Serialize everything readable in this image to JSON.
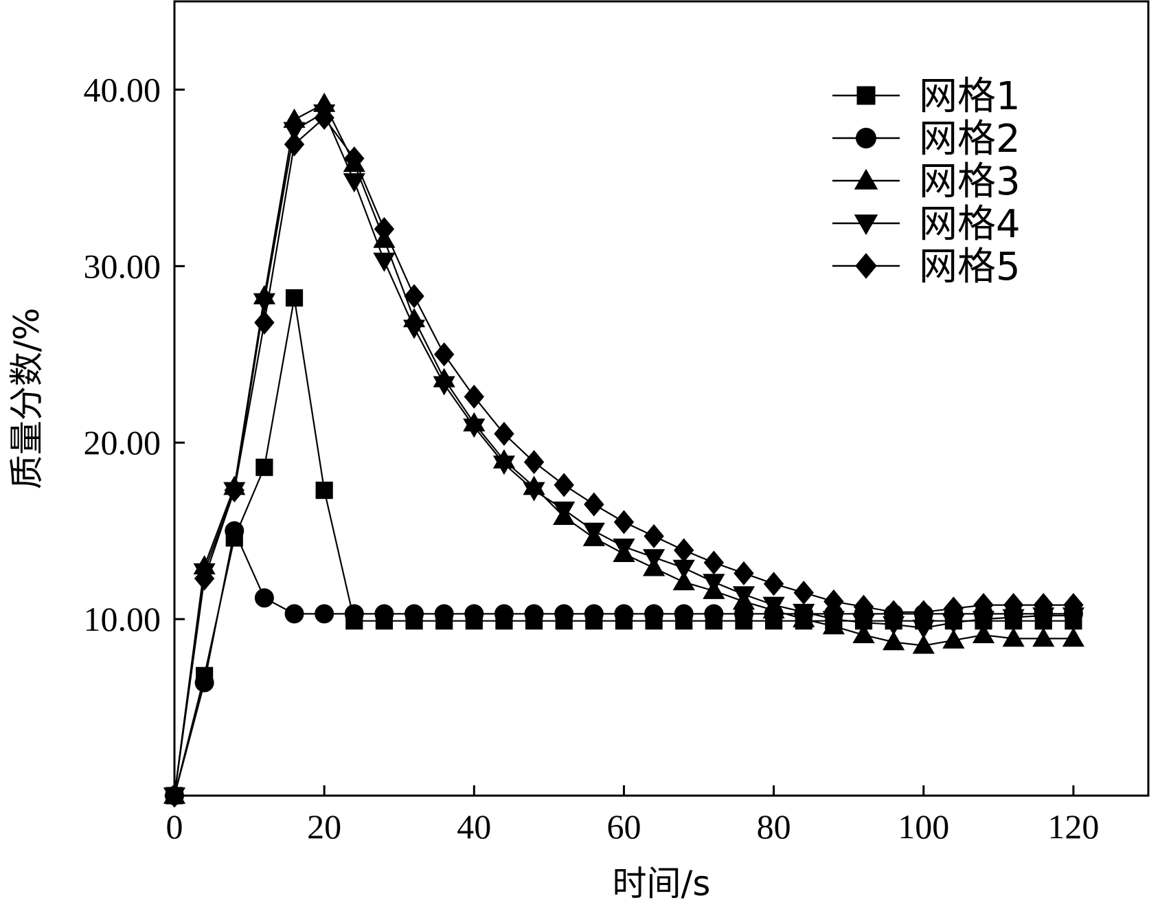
{
  "chart_data": {
    "type": "line",
    "xlabel": "时间/s",
    "ylabel": "质量分数/%",
    "xlim": [
      0,
      130
    ],
    "ylim": [
      0,
      45
    ],
    "x_ticks": [
      0,
      20,
      40,
      60,
      80,
      100,
      120
    ],
    "x_tick_labels": [
      "0",
      "20",
      "40",
      "60",
      "80",
      "100",
      "120"
    ],
    "y_ticks": [
      10,
      20,
      30,
      40
    ],
    "y_tick_labels": [
      "10.00",
      "20.00",
      "30.00",
      "40.00"
    ],
    "grid": false,
    "legend_position": "top-right",
    "series": [
      {
        "name": "网格1",
        "marker": "square",
        "x": [
          0,
          4,
          8,
          12,
          16,
          20,
          24,
          28,
          32,
          36,
          40,
          44,
          48,
          52,
          56,
          60,
          64,
          68,
          72,
          76,
          80,
          84,
          88,
          92,
          96,
          100,
          104,
          108,
          112,
          116,
          120
        ],
        "y": [
          0,
          6.8,
          14.6,
          18.6,
          28.2,
          17.3,
          9.9,
          9.9,
          9.9,
          9.9,
          9.9,
          9.9,
          9.9,
          9.9,
          9.9,
          9.9,
          9.9,
          9.9,
          9.9,
          9.9,
          9.9,
          9.9,
          9.9,
          9.9,
          9.9,
          9.9,
          9.9,
          9.9,
          9.9,
          9.9,
          9.9
        ]
      },
      {
        "name": "网格2",
        "marker": "circle",
        "x": [
          0,
          4,
          8,
          12,
          16,
          20,
          24,
          28,
          32,
          36,
          40,
          44,
          48,
          52,
          56,
          60,
          64,
          68,
          72,
          76,
          80,
          84,
          88,
          92,
          96,
          100,
          104,
          108,
          112,
          116,
          120
        ],
        "y": [
          0,
          6.4,
          15.0,
          11.2,
          10.3,
          10.3,
          10.3,
          10.3,
          10.3,
          10.3,
          10.3,
          10.3,
          10.3,
          10.3,
          10.3,
          10.3,
          10.3,
          10.3,
          10.3,
          10.3,
          10.3,
          10.3,
          10.3,
          10.3,
          10.3,
          10.3,
          10.3,
          10.3,
          10.3,
          10.3,
          10.3
        ]
      },
      {
        "name": "网格3",
        "marker": "triangle-up",
        "x": [
          0,
          4,
          8,
          12,
          16,
          20,
          24,
          28,
          32,
          36,
          40,
          44,
          48,
          52,
          56,
          60,
          64,
          68,
          72,
          76,
          80,
          84,
          88,
          92,
          96,
          100,
          104,
          108,
          112,
          116,
          120
        ],
        "y": [
          0,
          13.0,
          17.5,
          28.3,
          38.3,
          39.2,
          35.8,
          31.5,
          27.0,
          23.6,
          21.1,
          19.0,
          17.5,
          15.8,
          14.6,
          13.7,
          12.9,
          12.1,
          11.6,
          11.0,
          10.5,
          10.0,
          9.6,
          9.1,
          8.7,
          8.5,
          8.8,
          9.1,
          8.9,
          8.9,
          8.9
        ]
      },
      {
        "name": "网格4",
        "marker": "triangle-down",
        "x": [
          0,
          4,
          8,
          12,
          16,
          20,
          24,
          28,
          32,
          36,
          40,
          44,
          48,
          52,
          56,
          60,
          64,
          68,
          72,
          76,
          80,
          84,
          88,
          92,
          96,
          100,
          104,
          108,
          112,
          116,
          120
        ],
        "y": [
          0,
          12.7,
          17.3,
          28.0,
          37.7,
          38.7,
          34.8,
          30.3,
          26.5,
          23.3,
          20.9,
          18.8,
          17.3,
          16.2,
          15.0,
          14.1,
          13.5,
          12.9,
          12.1,
          11.4,
          10.8,
          10.4,
          10.0,
          9.8,
          9.7,
          9.5,
          9.8,
          10.0,
          10.1,
          10.2,
          10.2
        ]
      },
      {
        "name": "网格5",
        "marker": "diamond",
        "x": [
          0,
          4,
          8,
          12,
          16,
          20,
          24,
          28,
          32,
          36,
          40,
          44,
          48,
          52,
          56,
          60,
          64,
          68,
          72,
          76,
          80,
          84,
          88,
          92,
          96,
          100,
          104,
          108,
          112,
          116,
          120
        ],
        "y": [
          0,
          12.3,
          17.3,
          26.8,
          36.9,
          38.4,
          36.1,
          32.1,
          28.3,
          25.0,
          22.6,
          20.5,
          18.9,
          17.6,
          16.5,
          15.5,
          14.7,
          13.9,
          13.2,
          12.6,
          12.0,
          11.5,
          11.0,
          10.7,
          10.4,
          10.4,
          10.6,
          10.8,
          10.8,
          10.8,
          10.8
        ]
      }
    ]
  }
}
